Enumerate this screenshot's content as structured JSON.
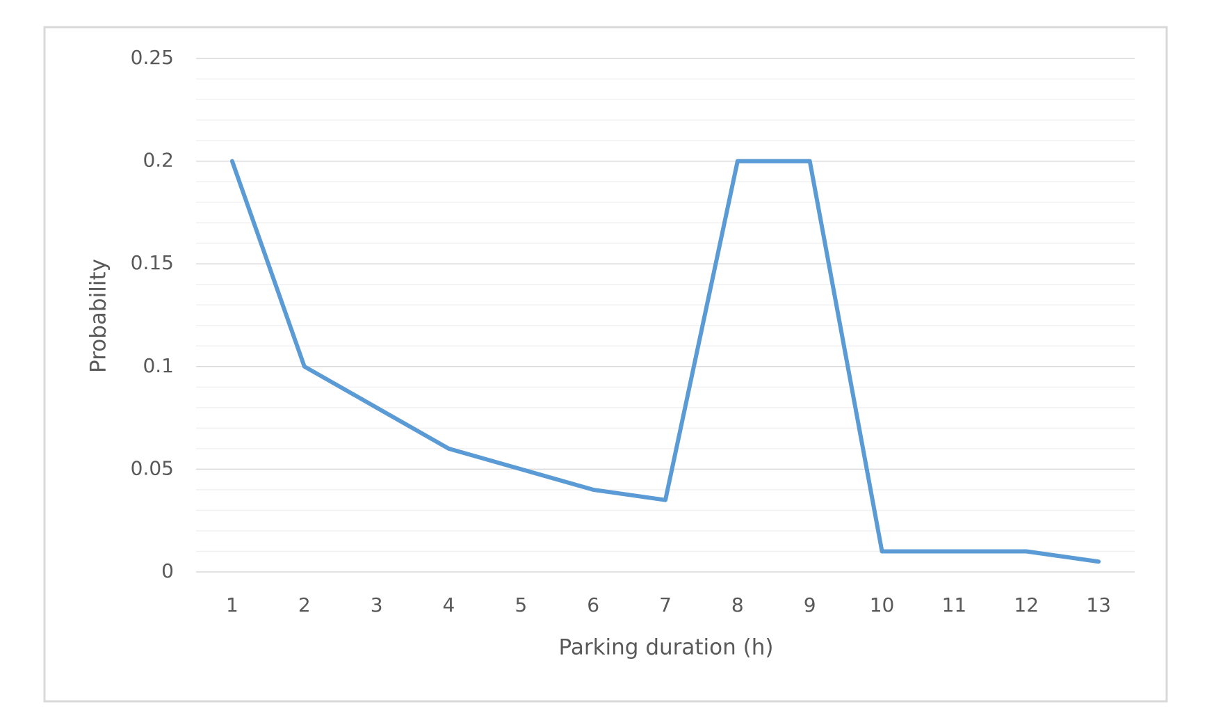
{
  "chart_data": {
    "type": "line",
    "xlabel": "Parking duration (h)",
    "ylabel": "Probability",
    "categories": [
      "1",
      "2",
      "3",
      "4",
      "5",
      "6",
      "7",
      "8",
      "9",
      "10",
      "11",
      "12",
      "13"
    ],
    "series": [
      {
        "color": "#5b9bd5",
        "values": [
          0.2,
          0.1,
          0.08,
          0.06,
          0.05,
          0.04,
          0.035,
          0.2,
          0.2,
          0.01,
          0.01,
          0.01,
          0.005
        ]
      }
    ],
    "ylim": [
      0,
      0.25
    ],
    "yticks": [
      0,
      0.05,
      0.1,
      0.15,
      0.2,
      0.25
    ],
    "yticks_minor": [
      0.01,
      0.02,
      0.03,
      0.04,
      0.06,
      0.07,
      0.08,
      0.09,
      0.11,
      0.12,
      0.13,
      0.14,
      0.16,
      0.17,
      0.18,
      0.19,
      0.21,
      0.22,
      0.23,
      0.24
    ],
    "grid": true
  }
}
